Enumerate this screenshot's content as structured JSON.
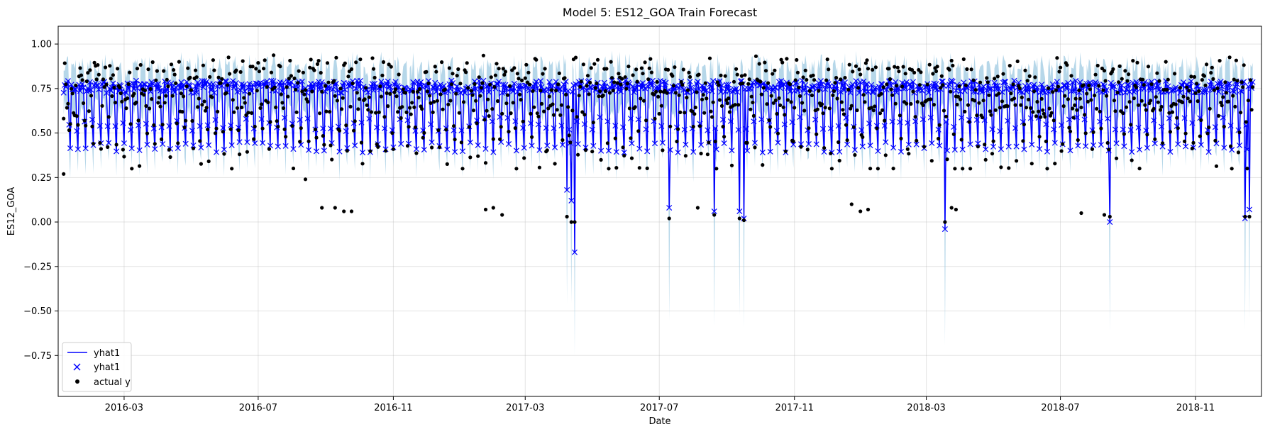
{
  "chart_data": {
    "type": "line",
    "title": "Model 5: ES12_GOA Train Forecast",
    "xlabel": "Date",
    "ylabel": "ES12_GOA",
    "x_range": [
      "2016-01-01",
      "2018-12-31"
    ],
    "ylim": [
      -0.98,
      1.1
    ],
    "x_ticks": [
      "2016-03",
      "2016-07",
      "2016-11",
      "2017-03",
      "2017-07",
      "2017-11",
      "2018-03",
      "2018-07",
      "2018-11"
    ],
    "y_ticks": [
      "1.00",
      "0.75",
      "0.50",
      "0.25",
      "0.00",
      "−0.25",
      "−0.50",
      "−0.75"
    ],
    "y_tick_values": [
      1.0,
      0.75,
      0.5,
      0.25,
      0.0,
      -0.25,
      -0.5,
      -0.75
    ],
    "grid": true,
    "legend_position": "lower-left",
    "series": [
      {
        "name": "yhat1",
        "style": "line",
        "color": "#0000ff"
      },
      {
        "name": "yhat1",
        "style": "x-marker",
        "color": "#0000ff"
      },
      {
        "name": "actual y",
        "style": "dot",
        "color": "#000000"
      }
    ],
    "uncertainty_band_color": "#9ecae1",
    "series_start": "2016-01-06",
    "series_end": "2018-12-23",
    "dip_events": [
      {
        "date": "2017-04-08",
        "yhat": 0.18,
        "actual": 0.03
      },
      {
        "date": "2017-04-12",
        "yhat": 0.12,
        "actual": 0.0
      },
      {
        "date": "2017-04-15",
        "yhat": -0.17,
        "actual": 0.0
      },
      {
        "date": "2017-07-10",
        "yhat": 0.08,
        "actual": 0.02
      },
      {
        "date": "2017-08-20",
        "yhat": 0.06,
        "actual": 0.04
      },
      {
        "date": "2017-09-12",
        "yhat": 0.06,
        "actual": 0.02
      },
      {
        "date": "2017-09-16",
        "yhat": 0.02,
        "actual": 0.01
      },
      {
        "date": "2018-03-18",
        "yhat": -0.04,
        "actual": 0.0
      },
      {
        "date": "2018-08-15",
        "yhat": 0.0,
        "actual": 0.03
      },
      {
        "date": "2018-12-16",
        "yhat": 0.02,
        "actual": 0.03
      },
      {
        "date": "2018-12-20",
        "yhat": 0.07,
        "actual": 0.03
      }
    ],
    "low_actual_points": [
      {
        "date": "2016-01-06",
        "value": 0.27
      },
      {
        "date": "2016-08-13",
        "value": 0.24
      },
      {
        "date": "2016-08-28",
        "value": 0.08
      },
      {
        "date": "2016-09-09",
        "value": 0.08
      },
      {
        "date": "2016-09-17",
        "value": 0.06
      },
      {
        "date": "2016-09-24",
        "value": 0.06
      },
      {
        "date": "2017-01-24",
        "value": 0.07
      },
      {
        "date": "2017-01-31",
        "value": 0.08
      },
      {
        "date": "2017-02-08",
        "value": 0.04
      },
      {
        "date": "2017-08-05",
        "value": 0.08
      },
      {
        "date": "2017-12-23",
        "value": 0.1
      },
      {
        "date": "2017-12-31",
        "value": 0.06
      },
      {
        "date": "2018-01-07",
        "value": 0.07
      },
      {
        "date": "2018-03-24",
        "value": 0.08
      },
      {
        "date": "2018-03-28",
        "value": 0.07
      },
      {
        "date": "2018-07-20",
        "value": 0.05
      },
      {
        "date": "2018-08-10",
        "value": 0.04
      }
    ]
  }
}
